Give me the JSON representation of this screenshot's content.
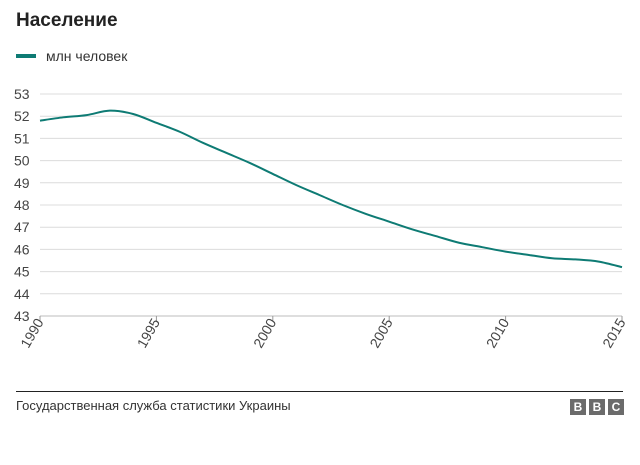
{
  "chart_data": {
    "type": "line",
    "title": "Население",
    "legend": "млн человек",
    "series_color": "#0e7b74",
    "x": [
      1990,
      1991,
      1992,
      1993,
      1994,
      1995,
      1996,
      1997,
      1998,
      1999,
      2000,
      2001,
      2002,
      2003,
      2004,
      2005,
      2006,
      2007,
      2008,
      2009,
      2010,
      2011,
      2012,
      2013,
      2014,
      2015
    ],
    "values": [
      51.8,
      51.95,
      52.05,
      52.25,
      52.1,
      51.7,
      51.3,
      50.8,
      50.35,
      49.9,
      49.4,
      48.9,
      48.45,
      48.0,
      47.6,
      47.25,
      46.9,
      46.6,
      46.3,
      46.1,
      45.9,
      45.75,
      45.6,
      45.55,
      45.45,
      45.2
    ],
    "xlim": [
      1990,
      2015
    ],
    "ylim": [
      43,
      53
    ],
    "y_ticks": [
      43,
      44,
      45,
      46,
      47,
      48,
      49,
      50,
      51,
      52,
      53
    ],
    "x_ticks": [
      1990,
      1995,
      2000,
      2005,
      2010,
      2015
    ],
    "grid": true
  },
  "footer": {
    "source": "Государственная служба статистики Украины",
    "logo_letters": [
      "B",
      "B",
      "C"
    ]
  }
}
